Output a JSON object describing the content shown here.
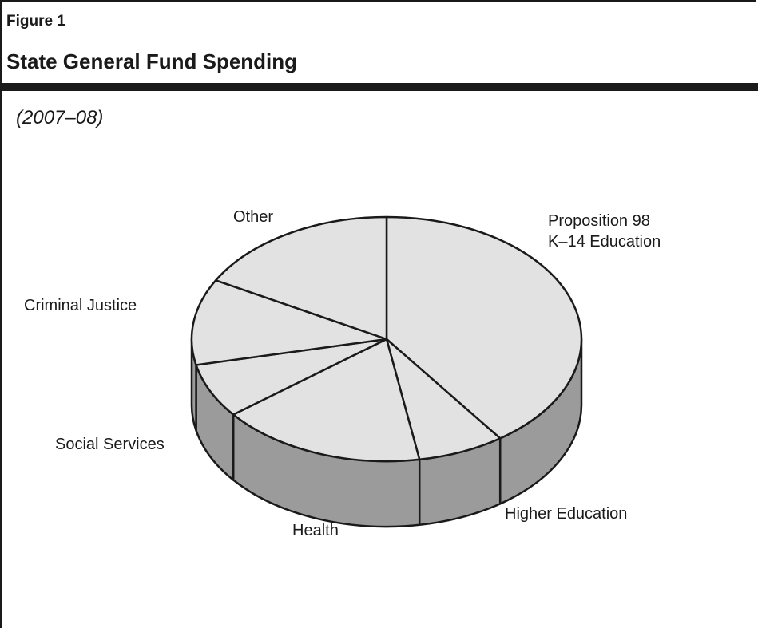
{
  "figure_label": "Figure 1",
  "title": "State General Fund Spending",
  "subtitle": "(2007–08)",
  "colors": {
    "top": "#e2e2e2",
    "side": "#9b9b9b",
    "stroke": "#1a1a1a"
  },
  "chart_data": {
    "type": "pie",
    "style": "3d",
    "title": "State General Fund Spending",
    "subtitle": "(2007–08)",
    "legend": "none",
    "slices": [
      {
        "label": "Proposition 98\nK–14 Education",
        "value": 40.1
      },
      {
        "label": "Higher Education",
        "value": 7.2
      },
      {
        "label": "Health",
        "value": 17.1
      },
      {
        "label": "Social Services",
        "value": 7.2
      },
      {
        "label": "Criminal Justice",
        "value": 11.4
      },
      {
        "label": "Other",
        "value": 17.0
      }
    ]
  }
}
